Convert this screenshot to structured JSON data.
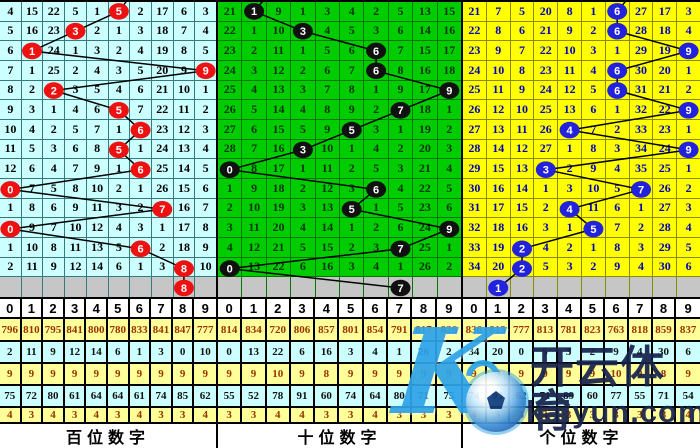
{
  "watermark": {
    "k": "K",
    "brand_cn": "开云体育",
    "brand_url": "kaiyun.com"
  },
  "panels": [
    {
      "id": "hundreds",
      "footer": "百位数字",
      "theme": {
        "cell_bg": "#CCFFFF",
        "grid_line": "#357b7b",
        "text": "#000000",
        "ball": "#EE1111"
      },
      "columns": [
        "0",
        "1",
        "2",
        "3",
        "4",
        "5",
        "6",
        "7",
        "8",
        "9"
      ],
      "rows": [
        {
          "cells": [
            "4",
            "15",
            "22",
            "5",
            "1",
            "",
            "2",
            "17",
            "6",
            "3"
          ],
          "ball_col": 5,
          "ball_label": "5"
        },
        {
          "cells": [
            "5",
            "16",
            "23",
            "",
            "2",
            "1",
            "3",
            "18",
            "7",
            "4"
          ],
          "ball_col": 3,
          "ball_label": "3"
        },
        {
          "cells": [
            "6",
            "",
            "24",
            "1",
            "3",
            "2",
            "4",
            "19",
            "8",
            "5"
          ],
          "ball_col": 1,
          "ball_label": "1"
        },
        {
          "cells": [
            "7",
            "1",
            "25",
            "2",
            "4",
            "3",
            "5",
            "20",
            "9",
            ""
          ],
          "ball_col": 9,
          "ball_label": "9"
        },
        {
          "cells": [
            "8",
            "2",
            "",
            "3",
            "5",
            "4",
            "6",
            "21",
            "10",
            "1"
          ],
          "ball_col": 2,
          "ball_label": "2"
        },
        {
          "cells": [
            "9",
            "3",
            "1",
            "4",
            "6",
            "",
            "7",
            "22",
            "11",
            "2"
          ],
          "ball_col": 5,
          "ball_label": "5"
        },
        {
          "cells": [
            "10",
            "4",
            "2",
            "5",
            "7",
            "1",
            "",
            "23",
            "12",
            "3"
          ],
          "ball_col": 6,
          "ball_label": "6"
        },
        {
          "cells": [
            "11",
            "5",
            "3",
            "6",
            "8",
            "",
            "1",
            "24",
            "13",
            "4"
          ],
          "ball_col": 5,
          "ball_label": "5"
        },
        {
          "cells": [
            "12",
            "6",
            "4",
            "7",
            "9",
            "1",
            "",
            "25",
            "14",
            "5"
          ],
          "ball_col": 6,
          "ball_label": "6"
        },
        {
          "cells": [
            "",
            "7",
            "5",
            "8",
            "10",
            "2",
            "1",
            "26",
            "15",
            "6"
          ],
          "ball_col": 0,
          "ball_label": "0"
        },
        {
          "cells": [
            "1",
            "8",
            "6",
            "9",
            "11",
            "3",
            "2",
            "",
            "16",
            "7"
          ],
          "ball_col": 7,
          "ball_label": "7"
        },
        {
          "cells": [
            "",
            "9",
            "7",
            "10",
            "12",
            "4",
            "3",
            "1",
            "17",
            "8"
          ],
          "ball_col": 0,
          "ball_label": "0"
        },
        {
          "cells": [
            "1",
            "10",
            "8",
            "11",
            "13",
            "5",
            "",
            "2",
            "18",
            "9"
          ],
          "ball_col": 6,
          "ball_label": "6"
        },
        {
          "cells": [
            "2",
            "11",
            "9",
            "12",
            "14",
            "6",
            "1",
            "3",
            "",
            "10"
          ],
          "ball_col": 8,
          "ball_label": "8"
        }
      ],
      "gray_ball": {
        "col": 8,
        "label": "8"
      },
      "stats": [
        {
          "kind": "yellow",
          "values": [
            "796",
            "810",
            "795",
            "841",
            "800",
            "780",
            "833",
            "841",
            "847",
            "777"
          ]
        },
        {
          "kind": "cyan",
          "values": [
            "2",
            "11",
            "9",
            "12",
            "14",
            "6",
            "1",
            "3",
            "0",
            "10"
          ]
        },
        {
          "kind": "yellow",
          "values": [
            "9",
            "9",
            "9",
            "9",
            "9",
            "9",
            "9",
            "9",
            "9",
            "9"
          ]
        },
        {
          "kind": "cyan",
          "values": [
            "75",
            "72",
            "80",
            "61",
            "64",
            "64",
            "61",
            "74",
            "85",
            "62"
          ]
        },
        {
          "kind": "yellow",
          "values": [
            "4",
            "3",
            "4",
            "3",
            "4",
            "3",
            "4",
            "3",
            "3",
            "4"
          ]
        }
      ]
    },
    {
      "id": "tens",
      "footer": "十位数字",
      "theme": {
        "cell_bg": "#00CC00",
        "grid_line": "#007700",
        "text": "#043304",
        "ball": "#101010"
      },
      "columns": [
        "0",
        "1",
        "2",
        "3",
        "4",
        "5",
        "6",
        "7",
        "8",
        "9"
      ],
      "rows": [
        {
          "cells": [
            "21",
            "",
            "9",
            "1",
            "3",
            "4",
            "2",
            "5",
            "13",
            "15"
          ],
          "ball_col": 1,
          "ball_label": "1"
        },
        {
          "cells": [
            "22",
            "1",
            "10",
            "",
            "4",
            "5",
            "3",
            "6",
            "14",
            "16"
          ],
          "ball_col": 3,
          "ball_label": "3"
        },
        {
          "cells": [
            "23",
            "2",
            "11",
            "1",
            "5",
            "6",
            "",
            "7",
            "15",
            "17"
          ],
          "ball_col": 6,
          "ball_label": "6"
        },
        {
          "cells": [
            "24",
            "3",
            "12",
            "2",
            "6",
            "7",
            "",
            "8",
            "16",
            "18"
          ],
          "ball_col": 6,
          "ball_label": "6"
        },
        {
          "cells": [
            "25",
            "4",
            "13",
            "3",
            "7",
            "8",
            "1",
            "9",
            "17",
            ""
          ],
          "ball_col": 9,
          "ball_label": "9"
        },
        {
          "cells": [
            "26",
            "5",
            "14",
            "4",
            "8",
            "9",
            "2",
            "",
            "18",
            "1"
          ],
          "ball_col": 7,
          "ball_label": "7"
        },
        {
          "cells": [
            "27",
            "6",
            "15",
            "5",
            "9",
            "",
            "3",
            "1",
            "19",
            "2"
          ],
          "ball_col": 5,
          "ball_label": "5"
        },
        {
          "cells": [
            "28",
            "7",
            "16",
            "",
            "10",
            "1",
            "4",
            "2",
            "20",
            "3"
          ],
          "ball_col": 3,
          "ball_label": "3"
        },
        {
          "cells": [
            "",
            "8",
            "17",
            "1",
            "11",
            "2",
            "5",
            "3",
            "21",
            "4"
          ],
          "ball_col": 0,
          "ball_label": "0"
        },
        {
          "cells": [
            "1",
            "9",
            "18",
            "2",
            "12",
            "3",
            "",
            "4",
            "22",
            "5"
          ],
          "ball_col": 6,
          "ball_label": "6"
        },
        {
          "cells": [
            "2",
            "10",
            "19",
            "3",
            "13",
            "",
            "1",
            "5",
            "23",
            "6"
          ],
          "ball_col": 5,
          "ball_label": "5"
        },
        {
          "cells": [
            "3",
            "11",
            "20",
            "4",
            "14",
            "1",
            "2",
            "6",
            "24",
            ""
          ],
          "ball_col": 9,
          "ball_label": "9"
        },
        {
          "cells": [
            "4",
            "12",
            "21",
            "5",
            "15",
            "2",
            "3",
            "",
            "25",
            "1"
          ],
          "ball_col": 7,
          "ball_label": "7"
        },
        {
          "cells": [
            "",
            "13",
            "22",
            "6",
            "16",
            "3",
            "4",
            "1",
            "26",
            "2"
          ],
          "ball_col": 0,
          "ball_label": "0"
        }
      ],
      "gray_ball": {
        "col": 7,
        "label": "7"
      },
      "stats": [
        {
          "kind": "yellow",
          "values": [
            "814",
            "834",
            "720",
            "806",
            "857",
            "801",
            "854",
            "791",
            "817",
            "826"
          ]
        },
        {
          "kind": "cyan",
          "values": [
            "0",
            "13",
            "22",
            "6",
            "16",
            "3",
            "4",
            "1",
            "26",
            "2"
          ]
        },
        {
          "kind": "yellow",
          "values": [
            "9",
            "9",
            "10",
            "9",
            "8",
            "9",
            "9",
            "9",
            "9",
            "9"
          ]
        },
        {
          "kind": "cyan",
          "values": [
            "55",
            "52",
            "78",
            "91",
            "60",
            "74",
            "64",
            "80",
            "71",
            "75"
          ]
        },
        {
          "kind": "yellow",
          "values": [
            "3",
            "3",
            "4",
            "4",
            "3",
            "3",
            "4",
            "3",
            "3",
            "3"
          ]
        }
      ]
    },
    {
      "id": "units",
      "footer": "个位数字",
      "theme": {
        "cell_bg": "#FFFF00",
        "grid_line": "#8B8B00",
        "text": "#0000BB",
        "ball": "#2222DD"
      },
      "columns": [
        "0",
        "1",
        "2",
        "3",
        "4",
        "5",
        "6",
        "7",
        "8",
        "9"
      ],
      "rows": [
        {
          "cells": [
            "21",
            "7",
            "5",
            "20",
            "8",
            "1",
            "",
            "27",
            "17",
            "3"
          ],
          "ball_col": 6,
          "ball_label": "6"
        },
        {
          "cells": [
            "22",
            "8",
            "6",
            "21",
            "9",
            "2",
            "",
            "28",
            "18",
            "4"
          ],
          "ball_col": 6,
          "ball_label": "6"
        },
        {
          "cells": [
            "23",
            "9",
            "7",
            "22",
            "10",
            "3",
            "1",
            "29",
            "19",
            ""
          ],
          "ball_col": 9,
          "ball_label": "9"
        },
        {
          "cells": [
            "24",
            "10",
            "8",
            "23",
            "11",
            "4",
            "",
            "30",
            "20",
            "1"
          ],
          "ball_col": 6,
          "ball_label": "6"
        },
        {
          "cells": [
            "25",
            "11",
            "9",
            "24",
            "12",
            "5",
            "",
            "31",
            "21",
            "2"
          ],
          "ball_col": 6,
          "ball_label": "6"
        },
        {
          "cells": [
            "26",
            "12",
            "10",
            "25",
            "13",
            "6",
            "1",
            "32",
            "22",
            ""
          ],
          "ball_col": 9,
          "ball_label": "9"
        },
        {
          "cells": [
            "27",
            "13",
            "11",
            "26",
            "",
            "7",
            "2",
            "33",
            "23",
            "1"
          ],
          "ball_col": 4,
          "ball_label": "4"
        },
        {
          "cells": [
            "28",
            "14",
            "12",
            "27",
            "1",
            "8",
            "3",
            "34",
            "24",
            ""
          ],
          "ball_col": 9,
          "ball_label": "9"
        },
        {
          "cells": [
            "29",
            "15",
            "13",
            "",
            "2",
            "9",
            "4",
            "35",
            "25",
            "1"
          ],
          "ball_col": 3,
          "ball_label": "3"
        },
        {
          "cells": [
            "30",
            "16",
            "14",
            "1",
            "3",
            "10",
            "5",
            "",
            "26",
            "2"
          ],
          "ball_col": 7,
          "ball_label": "7"
        },
        {
          "cells": [
            "31",
            "17",
            "15",
            "2",
            "",
            "11",
            "6",
            "1",
            "27",
            "3"
          ],
          "ball_col": 4,
          "ball_label": "4"
        },
        {
          "cells": [
            "32",
            "18",
            "16",
            "3",
            "1",
            "",
            "7",
            "2",
            "28",
            "4"
          ],
          "ball_col": 5,
          "ball_label": "5"
        },
        {
          "cells": [
            "33",
            "19",
            "",
            "4",
            "2",
            "1",
            "8",
            "3",
            "29",
            "5"
          ],
          "ball_col": 2,
          "ball_label": "2"
        },
        {
          "cells": [
            "34",
            "20",
            "",
            "5",
            "3",
            "2",
            "9",
            "4",
            "30",
            "6"
          ],
          "ball_col": 2,
          "ball_label": "2"
        }
      ],
      "gray_ball": {
        "col": 1,
        "label": "1"
      },
      "stats": [
        {
          "kind": "yellow",
          "values": [
            "836",
            "813",
            "777",
            "813",
            "781",
            "823",
            "763",
            "818",
            "859",
            "837"
          ]
        },
        {
          "kind": "cyan",
          "values": [
            "34",
            "20",
            "0",
            "5",
            "3",
            "2",
            "9",
            "4",
            "30",
            "6"
          ]
        },
        {
          "kind": "yellow",
          "values": [
            "9",
            "9",
            "9",
            "9",
            "9",
            "9",
            "10",
            "9",
            "8",
            "9"
          ]
        },
        {
          "kind": "cyan",
          "values": [
            "74",
            "93",
            "62",
            "71",
            "89",
            "60",
            "77",
            "55",
            "71",
            "54"
          ]
        },
        {
          "kind": "yellow",
          "values": [
            "4",
            "3",
            "3",
            "3",
            "3",
            "3",
            "3",
            "3",
            "3",
            "4"
          ]
        }
      ]
    }
  ]
}
